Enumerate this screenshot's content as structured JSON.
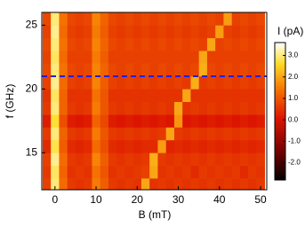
{
  "chart_data": {
    "type": "heatmap",
    "xlabel": "B (mT)",
    "ylabel": "f (GHz)",
    "colorbar_label": "I (pA)",
    "x": [
      -2,
      0,
      2,
      4,
      6,
      8,
      10,
      12,
      14,
      16,
      18,
      20,
      22,
      24,
      26,
      28,
      30,
      32,
      34,
      36,
      38,
      40,
      42,
      44,
      46,
      48,
      50
    ],
    "y": [
      12.5,
      13.5,
      14.5,
      15.5,
      16.5,
      17.5,
      18.5,
      19.5,
      20.5,
      21.5,
      22.5,
      23.5,
      24.5,
      25.5
    ],
    "z": [
      [
        0.7,
        3.0,
        1.3,
        0.6,
        0.5,
        0.6,
        1.5,
        1.1,
        0.6,
        0.5,
        0.6,
        0.5,
        2.0,
        0.5,
        0.6,
        0.5,
        0.6,
        0.5,
        0.6,
        0.5,
        0.6,
        0.5,
        0.6,
        0.5,
        0.6,
        0.5,
        0.6
      ],
      [
        0.6,
        2.9,
        1.2,
        0.5,
        0.6,
        0.5,
        1.4,
        1.0,
        0.5,
        0.6,
        0.5,
        0.6,
        0.7,
        2.0,
        0.5,
        0.6,
        0.5,
        0.6,
        0.4,
        0.6,
        0.5,
        0.6,
        0.5,
        0.6,
        0.4,
        0.6,
        0.5
      ],
      [
        0.7,
        3.1,
        1.3,
        0.6,
        0.5,
        0.6,
        1.6,
        1.1,
        0.6,
        0.5,
        0.6,
        0.5,
        0.6,
        2.1,
        0.6,
        0.5,
        0.6,
        0.5,
        0.6,
        0.5,
        0.6,
        0.5,
        0.6,
        0.5,
        0.6,
        0.5,
        0.6
      ],
      [
        0.4,
        2.8,
        1.1,
        0.4,
        0.3,
        0.4,
        1.3,
        0.9,
        0.4,
        0.3,
        0.4,
        0.3,
        0.4,
        0.4,
        1.9,
        0.3,
        0.4,
        0.3,
        0.4,
        0.3,
        0.4,
        0.3,
        0.4,
        0.3,
        0.4,
        0.3,
        0.4
      ],
      [
        0.6,
        3.0,
        1.2,
        0.6,
        0.5,
        0.6,
        1.5,
        1.0,
        0.6,
        0.5,
        0.6,
        0.5,
        0.6,
        0.5,
        0.6,
        2.0,
        0.6,
        0.5,
        0.6,
        0.5,
        0.6,
        0.5,
        0.6,
        0.5,
        0.6,
        0.5,
        0.6
      ],
      [
        0.2,
        2.7,
        0.9,
        0.2,
        0.1,
        0.2,
        1.2,
        0.8,
        0.2,
        0.1,
        0.2,
        0.1,
        0.2,
        0.1,
        0.2,
        0.1,
        1.8,
        0.1,
        0.2,
        0.1,
        0.2,
        0.1,
        0.2,
        0.1,
        0.2,
        0.1,
        0.2
      ],
      [
        0.6,
        3.0,
        1.2,
        0.6,
        0.5,
        0.6,
        1.5,
        1.0,
        0.6,
        0.5,
        0.6,
        0.5,
        0.6,
        0.5,
        0.6,
        0.5,
        2.0,
        0.5,
        0.6,
        0.5,
        0.6,
        0.5,
        0.6,
        0.5,
        0.6,
        0.5,
        0.6
      ],
      [
        0.5,
        2.9,
        1.2,
        0.5,
        0.5,
        0.5,
        1.4,
        1.0,
        0.5,
        0.5,
        0.5,
        0.5,
        0.5,
        0.5,
        0.5,
        0.5,
        0.5,
        2.0,
        0.5,
        0.5,
        0.5,
        0.5,
        0.5,
        0.5,
        0.5,
        0.5,
        0.5
      ],
      [
        0.7,
        3.1,
        1.3,
        0.7,
        0.6,
        0.7,
        1.6,
        1.1,
        0.7,
        0.6,
        0.7,
        0.6,
        0.7,
        0.6,
        0.7,
        0.6,
        0.7,
        0.6,
        2.1,
        0.6,
        0.7,
        0.6,
        0.7,
        0.6,
        0.7,
        0.6,
        0.7
      ],
      [
        0.8,
        3.0,
        1.4,
        0.8,
        0.7,
        0.8,
        1.6,
        1.2,
        0.8,
        0.7,
        0.8,
        0.7,
        0.8,
        0.7,
        0.8,
        0.7,
        0.8,
        0.7,
        0.8,
        2.1,
        0.8,
        0.7,
        0.8,
        0.7,
        0.8,
        0.7,
        0.8
      ],
      [
        0.7,
        2.9,
        1.3,
        0.7,
        0.7,
        0.7,
        1.5,
        1.1,
        0.7,
        0.7,
        0.7,
        0.7,
        0.7,
        0.7,
        0.7,
        0.7,
        0.7,
        0.7,
        0.7,
        2.0,
        0.7,
        0.7,
        0.7,
        0.7,
        0.7,
        0.7,
        0.7
      ],
      [
        0.8,
        3.0,
        1.4,
        0.8,
        0.7,
        0.8,
        1.6,
        1.2,
        0.8,
        0.7,
        0.8,
        0.7,
        0.8,
        0.7,
        0.8,
        0.7,
        0.8,
        0.7,
        0.8,
        0.7,
        2.0,
        0.7,
        0.8,
        0.7,
        0.8,
        0.7,
        0.8
      ],
      [
        0.7,
        3.1,
        1.3,
        0.7,
        0.6,
        0.7,
        1.5,
        1.1,
        0.7,
        0.6,
        0.7,
        0.6,
        0.7,
        0.6,
        0.7,
        0.6,
        0.7,
        0.6,
        0.7,
        0.6,
        0.7,
        1.9,
        0.7,
        0.6,
        0.7,
        0.6,
        0.7
      ],
      [
        0.8,
        3.0,
        1.4,
        0.8,
        0.7,
        0.8,
        1.6,
        1.2,
        0.8,
        0.7,
        0.8,
        0.7,
        0.8,
        0.7,
        0.8,
        0.7,
        0.8,
        0.7,
        0.8,
        0.7,
        0.8,
        0.7,
        1.9,
        0.7,
        0.8,
        0.7,
        0.8
      ]
    ],
    "xlim": [
      -3.2,
      51.5
    ],
    "ylim": [
      12.1,
      26
    ],
    "zlim": [
      -2.8,
      3.6
    ],
    "xticks": [
      0,
      10,
      20,
      30,
      40,
      50
    ],
    "yticks": [
      15,
      20,
      25
    ],
    "colorbar_ticks": [
      {
        "value": -2,
        "label": "-2.0"
      },
      {
        "value": -1,
        "label": "-1.0"
      },
      {
        "value": 0,
        "label": "0.0"
      },
      {
        "value": 1,
        "label": "1.0"
      },
      {
        "value": 2,
        "label": "2.0"
      },
      {
        "value": 3,
        "label": "3.0"
      }
    ],
    "hline": {
      "y": 21,
      "color": "#2020e0"
    }
  }
}
